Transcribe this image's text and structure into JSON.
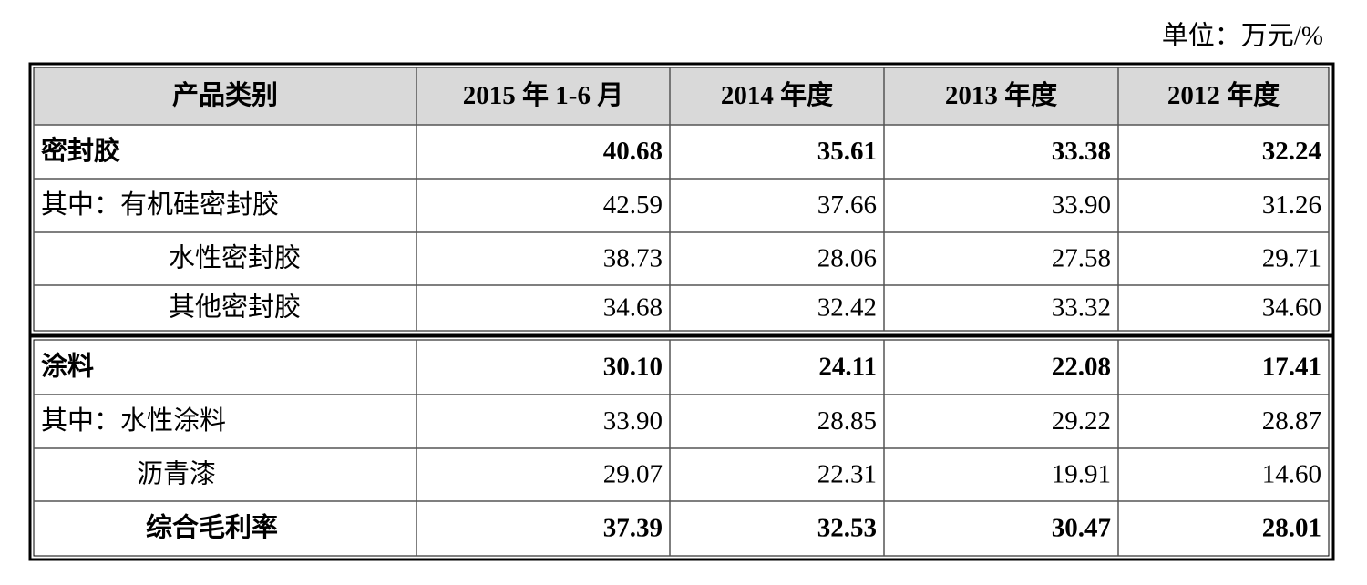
{
  "unit": "单位：万元/%",
  "table": {
    "header": [
      "产品类别",
      "2015 年 1-6 月",
      "2014 年度",
      "2013 年度",
      "2012 年度"
    ],
    "rows": [
      [
        "密封胶",
        "40.68",
        "35.61",
        "33.38",
        "32.24"
      ],
      [
        "其中：有机硅密封胶",
        "42.59",
        "37.66",
        "33.90",
        "31.26"
      ],
      [
        "水性密封胶",
        "38.73",
        "28.06",
        "27.58",
        "29.71"
      ],
      [
        "其他密封胶",
        "34.68",
        "32.42",
        "33.32",
        "34.60"
      ],
      [
        "涂料",
        "30.10",
        "24.11",
        "22.08",
        "17.41"
      ],
      [
        "其中：水性涂料",
        "33.90",
        "28.85",
        "29.22",
        "28.87"
      ],
      [
        "沥青漆",
        "29.07",
        "22.31",
        "19.91",
        "14.60"
      ],
      [
        "综合毛利率",
        "37.39",
        "32.53",
        "30.47",
        "28.01"
      ]
    ]
  }
}
